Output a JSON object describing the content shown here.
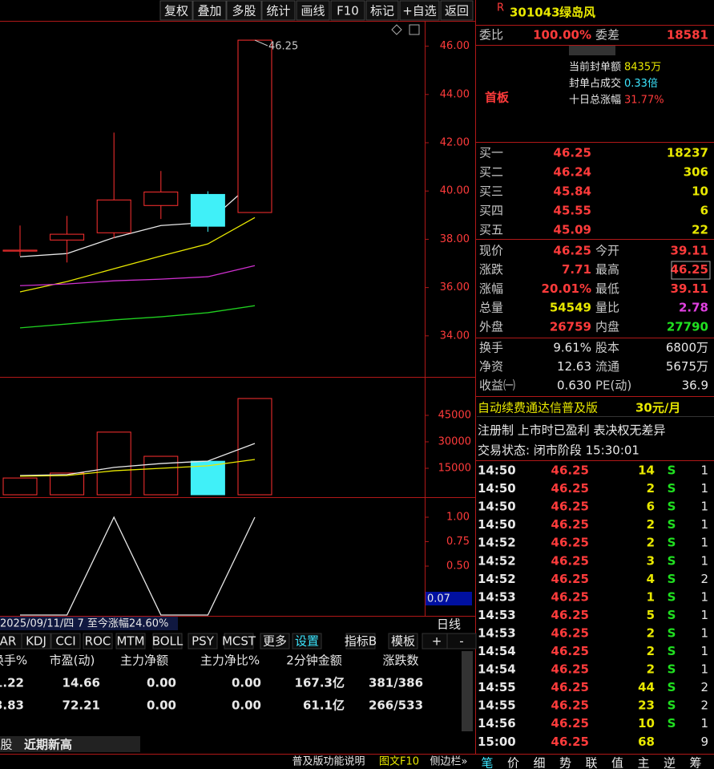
{
  "toolbar": [
    "复权",
    "叠加",
    "多股",
    "统计",
    "画线",
    "F10",
    "标记",
    "+自选",
    "返回"
  ],
  "kline": {
    "high_label": "46.25",
    "ylim": [
      32.3,
      47.05
    ],
    "yticks": [
      {
        "value": 46,
        "label": "46.00"
      },
      {
        "value": 44,
        "label": "44.00"
      },
      {
        "value": 42,
        "label": "42.00"
      },
      {
        "value": 40,
        "label": "40.00"
      },
      {
        "value": 38,
        "label": "38.00"
      },
      {
        "value": 36,
        "label": "36.00"
      },
      {
        "value": 34,
        "label": "34.00"
      }
    ],
    "candles": [
      {
        "open": 37.51,
        "high": 38.57,
        "low": 37.31,
        "close": 37.55
      },
      {
        "open": 37.97,
        "high": 38.97,
        "low": 37.04,
        "close": 38.21
      },
      {
        "open": 38.27,
        "high": 42.42,
        "low": 38.04,
        "close": 39.63
      },
      {
        "open": 39.4,
        "high": 40.83,
        "low": 38.84,
        "close": 39.96
      },
      {
        "open": 39.86,
        "high": 39.99,
        "low": 38.31,
        "close": 38.54
      },
      {
        "open": 39.11,
        "high": 46.25,
        "low": 39.11,
        "close": 46.25
      }
    ],
    "ma": [
      {
        "color": "#e8e8e8",
        "values": [
          37.28,
          37.41,
          38.07,
          38.57,
          38.7,
          40.43
        ]
      },
      {
        "color": "#e8e800",
        "values": [
          35.82,
          36.25,
          36.78,
          37.31,
          37.81,
          38.9
        ]
      },
      {
        "color": "#d030d0",
        "values": [
          36.08,
          36.15,
          36.28,
          36.35,
          36.45,
          36.91
        ]
      },
      {
        "color": "#20d020",
        "values": [
          34.33,
          34.49,
          34.66,
          34.79,
          34.96,
          35.25
        ]
      }
    ]
  },
  "volume": {
    "ylim": [
      0,
      66800
    ],
    "yticks": [
      45000,
      30000,
      15000
    ],
    "values": [
      9500,
      12300,
      35500,
      21800,
      19000,
      54549
    ],
    "ma": [
      {
        "color": "#e8e8e8",
        "values": [
          10900,
          11400,
          15500,
          17700,
          19100,
          29100
        ]
      },
      {
        "color": "#e8e800",
        "values": [
          10500,
          10900,
          13600,
          15000,
          16400,
          20000
        ]
      }
    ]
  },
  "indicator": {
    "ylim": [
      0,
      1.205
    ],
    "yticks": [
      {
        "value": 1,
        "label": "1.00"
      },
      {
        "value": 0.75,
        "label": "0.75"
      },
      {
        "value": 0.5,
        "label": "0.50"
      }
    ],
    "values": [
      0,
      0,
      1,
      0,
      0,
      1
    ],
    "current": "0.07"
  },
  "period_info": "2025/09/11/四 7 至今涨幅24.60%",
  "period": "日线",
  "indicator_tabs": [
    "AR",
    "KDJ",
    "CCI",
    "ROC",
    "MTM",
    "BOLL",
    "PSY",
    "MCST",
    "更多",
    "设置",
    "指标B",
    "模板",
    "+",
    "-"
  ],
  "table": {
    "header": [
      "换手%",
      "市盈(动)",
      "主力净额",
      "主力净比%",
      "2分钟金额",
      "涨跌数"
    ],
    "rows": [
      [
        "1.22",
        "14.66",
        "0.00",
        "0.00",
        "167.3亿",
        "381/386"
      ],
      [
        "3.83",
        "72.21",
        "0.00",
        "0.00",
        "61.1亿",
        "266/533"
      ]
    ]
  },
  "bottom_tabs": [
    "股",
    "近期新高"
  ],
  "bottom_bar": [
    "普及版功能说明",
    "图文F10",
    "侧边栏»"
  ],
  "stock": {
    "flag": "R",
    "code": "301043",
    "name": "绿岛风"
  },
  "order_ratio": [
    "委比",
    "100.00%",
    "委差",
    "18581"
  ],
  "seal": {
    "badge": "首板",
    "rows": [
      [
        "当前封单额",
        "8435万"
      ],
      [
        "封单占成交",
        "0.33倍"
      ],
      [
        "十日总涨幅",
        "31.77%"
      ]
    ]
  },
  "bids": [
    [
      "买一",
      "46.25",
      "18237"
    ],
    [
      "买二",
      "46.24",
      "306"
    ],
    [
      "买三",
      "45.84",
      "10"
    ],
    [
      "买四",
      "45.55",
      "6"
    ],
    [
      "买五",
      "45.09",
      "22"
    ]
  ],
  "quotes": [
    [
      "现价",
      "46.25",
      "今开",
      "39.11"
    ],
    [
      "涨跌",
      "7.71",
      "最高",
      "46.25"
    ],
    [
      "涨幅",
      "20.01%",
      "最低",
      "39.11"
    ],
    [
      "总量",
      "54549",
      "量比",
      "2.78"
    ],
    [
      "外盘",
      "26759",
      "内盘",
      "27790"
    ]
  ],
  "stats": [
    [
      "换手",
      "9.61%",
      "股本",
      "6800万"
    ],
    [
      "净资",
      "12.63",
      "流通",
      "5675万"
    ],
    [
      "收益㈠",
      "0.630",
      "PE(动)",
      "36.9"
    ]
  ],
  "ad": [
    "自动续费通达信普及版",
    "30元/月"
  ],
  "tags": "注册制 上市时已盈利 表决权无差异",
  "status": "交易状态: 闭市阶段 15:30:01",
  "ticks": [
    [
      "14:50",
      "46.25",
      "14",
      "S",
      "1"
    ],
    [
      "14:50",
      "46.25",
      "2",
      "S",
      "1"
    ],
    [
      "14:50",
      "46.25",
      "6",
      "S",
      "1"
    ],
    [
      "14:50",
      "46.25",
      "2",
      "S",
      "1"
    ],
    [
      "14:52",
      "46.25",
      "2",
      "S",
      "1"
    ],
    [
      "14:52",
      "46.25",
      "3",
      "S",
      "1"
    ],
    [
      "14:52",
      "46.25",
      "4",
      "S",
      "2"
    ],
    [
      "14:53",
      "46.25",
      "1",
      "S",
      "1"
    ],
    [
      "14:53",
      "46.25",
      "5",
      "S",
      "1"
    ],
    [
      "14:53",
      "46.25",
      "2",
      "S",
      "1"
    ],
    [
      "14:54",
      "46.25",
      "2",
      "S",
      "1"
    ],
    [
      "14:54",
      "46.25",
      "2",
      "S",
      "1"
    ],
    [
      "14:55",
      "46.25",
      "44",
      "S",
      "2"
    ],
    [
      "14:55",
      "46.25",
      "23",
      "S",
      "2"
    ],
    [
      "14:56",
      "46.25",
      "10",
      "S",
      "1"
    ],
    [
      "15:00",
      "46.25",
      "68",
      "",
      "9"
    ]
  ],
  "side_tabs": [
    "笔",
    "价",
    "细",
    "势",
    "联",
    "值",
    "主",
    "逆",
    "筹"
  ]
}
